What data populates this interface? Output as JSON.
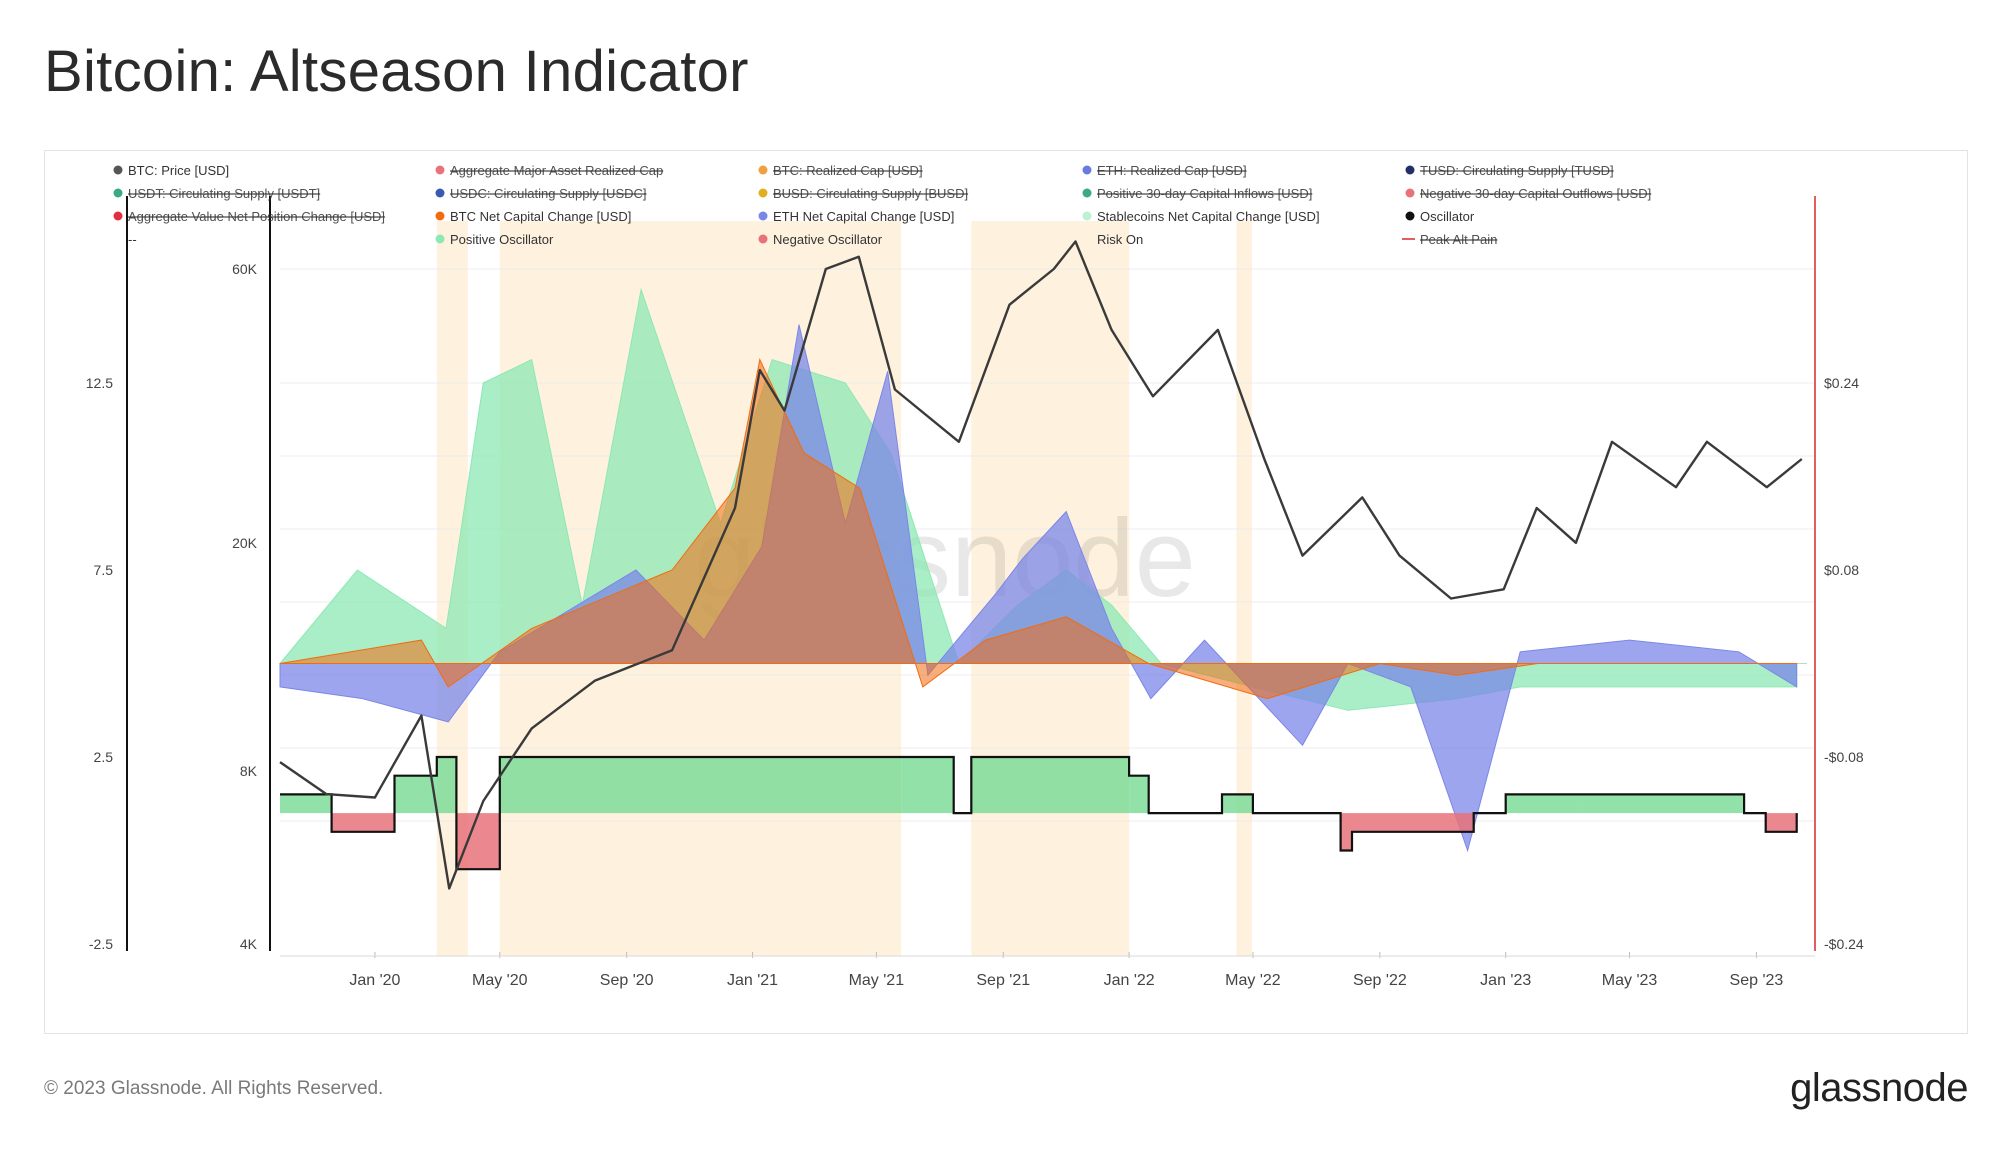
{
  "header": {
    "title": "Bitcoin: Altseason Indicator"
  },
  "footer": {
    "copyright": "© 2023 Glassnode. All Rights Reserved.",
    "brand": "glassnode"
  },
  "watermark": "glassnode",
  "colors": {
    "btc_price": "#3a3a3a",
    "btc_net_capital": "#f26b10",
    "eth_net_capital": "#7b87e8",
    "stablecoin_net_capital": "#8ce8b4",
    "positive_oscillator": "#7fdc9a",
    "negative_oscillator": "#e8727a",
    "risk_on": "#fdebd0",
    "right_axis": "#e06060"
  },
  "chart_data": {
    "type": "line",
    "title": "Bitcoin: Altseason Indicator",
    "legend": {
      "placement": "top",
      "items": [
        {
          "label": "BTC: Price [USD]",
          "color": "#555555",
          "active": true
        },
        {
          "label": "Aggregate Major Asset Realized Cap",
          "color": "#e8727a",
          "active": false
        },
        {
          "label": "BTC: Realized Cap [USD]",
          "color": "#f0a040",
          "active": false
        },
        {
          "label": "ETH: Realized Cap [USD]",
          "color": "#6a7be0",
          "active": false
        },
        {
          "label": "TUSD: Circulating Supply [TUSD]",
          "color": "#22306a",
          "active": false
        },
        {
          "label": "USDT: Circulating Supply [USDT]",
          "color": "#3aaa80",
          "active": false
        },
        {
          "label": "USDC: Circulating Supply [USDC]",
          "color": "#3a5ab0",
          "active": false
        },
        {
          "label": "BUSD: Circulating Supply [BUSD]",
          "color": "#e0b020",
          "active": false
        },
        {
          "label": "Positive 30-day Capital Inflows [USD]",
          "color": "#3aaa80",
          "active": false
        },
        {
          "label": "Negative 30-day Capital Outflows [USD]",
          "color": "#e8727a",
          "active": false
        },
        {
          "label": "Aggregate Value Net Position Change [USD]",
          "color": "#e03040",
          "active": false
        },
        {
          "label": "BTC Net Capital Change [USD]",
          "color": "#f26b10",
          "active": true
        },
        {
          "label": "ETH Net Capital Change [USD]",
          "color": "#7b87e8",
          "active": true
        },
        {
          "label": "Stablecoins Net Capital Change [USD]",
          "color": "#bff0d2",
          "active": true
        },
        {
          "label": "Oscillator",
          "color": "#111111",
          "active": true
        },
        {
          "label": "--",
          "color": "",
          "active": true
        },
        {
          "label": "Positive Oscillator",
          "color": "#8ce8b4",
          "active": true
        },
        {
          "label": "Negative Oscillator",
          "color": "#e8727a",
          "active": true
        },
        {
          "label": "Risk On",
          "color": "",
          "active": true
        },
        {
          "label": "Peak Alt Pain",
          "color": "#e06060",
          "active": false
        }
      ]
    },
    "x_axis": {
      "ticks": [
        "Jan '20",
        "May '20",
        "Sep '20",
        "Jan '21",
        "May '21",
        "Sep '21",
        "Jan '22",
        "May '22",
        "Sep '22",
        "Jan '23",
        "May '23",
        "Sep '23"
      ]
    },
    "y_axis_price": {
      "scale": "log",
      "ticks": [
        "4K",
        "8K",
        "20K",
        "60K"
      ],
      "tick_values": [
        4000,
        8000,
        20000,
        60000
      ]
    },
    "y_axis_oscillator": {
      "ticks": [
        "-2.5",
        "2.5",
        "7.5",
        "12.5"
      ],
      "tick_values": [
        -2.5,
        2.5,
        7.5,
        12.5
      ]
    },
    "y_axis_capital": {
      "ticks": [
        "-$0.24",
        "-$0.08",
        "$0.08",
        "$0.24"
      ],
      "tick_values": [
        -0.24,
        -0.08,
        0.08,
        0.24
      ]
    },
    "series": [
      {
        "name": "BTC: Price [USD]",
        "axis": "price",
        "x": [
          "2019-10-01",
          "2019-11-15",
          "2020-01-01",
          "2020-02-15",
          "2020-03-13",
          "2020-04-15",
          "2020-06-01",
          "2020-08-01",
          "2020-10-15",
          "2020-12-15",
          "2021-01-08",
          "2021-02-01",
          "2021-03-13",
          "2021-04-14",
          "2021-05-19",
          "2021-07-20",
          "2021-09-07",
          "2021-10-20",
          "2021-11-10",
          "2021-12-15",
          "2022-01-24",
          "2022-03-28",
          "2022-05-12",
          "2022-06-18",
          "2022-08-15",
          "2022-09-20",
          "2022-11-09",
          "2022-12-30",
          "2023-01-31",
          "2023-03-10",
          "2023-04-14",
          "2023-06-15",
          "2023-07-15",
          "2023-09-11",
          "2023-10-15"
        ],
        "values": [
          8300,
          7300,
          7200,
          10000,
          5000,
          7100,
          9500,
          11500,
          13000,
          23000,
          40000,
          34000,
          60000,
          63000,
          37000,
          30000,
          52000,
          60000,
          67000,
          47000,
          36000,
          47000,
          28000,
          19000,
          24000,
          19000,
          16000,
          16600,
          23000,
          20000,
          30000,
          25000,
          30000,
          25000,
          28000
        ]
      },
      {
        "name": "Oscillator",
        "axis": "oscillator",
        "x": [
          "2019-10-01",
          "2019-11-20",
          "2020-01-20",
          "2020-03-01",
          "2020-03-20",
          "2020-05-01",
          "2021-05-25",
          "2021-07-15",
          "2021-08-01",
          "2022-01-01",
          "2022-01-20",
          "2022-04-01",
          "2022-05-01",
          "2022-07-25",
          "2022-08-05",
          "2022-12-01",
          "2023-01-01",
          "2023-03-15",
          "2023-08-20",
          "2023-09-10",
          "2023-10-10"
        ],
        "values": [
          1.5,
          0.5,
          2.0,
          2.5,
          -0.5,
          2.5,
          2.5,
          1.0,
          2.5,
          2.0,
          1.0,
          1.5,
          1.0,
          0.0,
          0.5,
          1.0,
          1.5,
          1.5,
          1.0,
          0.5,
          1.0
        ]
      },
      {
        "name": "Stablecoins Net Capital Change [USD]",
        "axis": "capital",
        "x": [
          "2019-10-01",
          "2019-12-15",
          "2020-03-10",
          "2020-04-15",
          "2020-06-01",
          "2020-07-20",
          "2020-09-15",
          "2020-12-01",
          "2021-01-20",
          "2021-04-01",
          "2021-05-15",
          "2021-07-20",
          "2021-09-15",
          "2021-11-01",
          "2021-12-15",
          "2022-02-01",
          "2022-05-01",
          "2022-08-01",
          "2022-11-15",
          "2023-01-15",
          "2023-06-01",
          "2023-10-10"
        ],
        "values": [
          0.0,
          0.08,
          0.03,
          0.24,
          0.26,
          0.05,
          0.32,
          0.12,
          0.26,
          0.24,
          0.18,
          0.0,
          0.05,
          0.08,
          0.05,
          0.0,
          -0.02,
          -0.04,
          -0.03,
          -0.02,
          -0.02,
          -0.02
        ]
      },
      {
        "name": "ETH Net Capital Change [USD]",
        "axis": "capital",
        "x": [
          "2019-10-01",
          "2019-12-20",
          "2020-03-12",
          "2020-05-01",
          "2020-09-10",
          "2020-11-15",
          "2021-01-10",
          "2021-02-15",
          "2021-04-01",
          "2021-05-12",
          "2021-06-20",
          "2021-08-25",
          "2021-09-20",
          "2021-11-01",
          "2021-12-15",
          "2022-01-22",
          "2022-03-15",
          "2022-06-18",
          "2022-08-01",
          "2022-10-01",
          "2022-11-25",
          "2023-01-15",
          "2023-05-01",
          "2023-08-15",
          "2023-10-10"
        ],
        "values": [
          -0.02,
          -0.03,
          -0.05,
          0.01,
          0.08,
          0.02,
          0.1,
          0.29,
          0.12,
          0.25,
          -0.01,
          0.06,
          0.09,
          0.13,
          0.03,
          -0.03,
          0.02,
          -0.07,
          0.0,
          -0.02,
          -0.16,
          0.01,
          0.02,
          0.01,
          -0.02
        ]
      },
      {
        "name": "BTC Net Capital Change [USD]",
        "axis": "capital",
        "x": [
          "2019-10-01",
          "2020-02-15",
          "2020-03-12",
          "2020-06-01",
          "2020-10-15",
          "2020-12-15",
          "2021-01-08",
          "2021-02-20",
          "2021-04-15",
          "2021-06-15",
          "2021-08-15",
          "2021-11-01",
          "2022-01-20",
          "2022-05-15",
          "2022-09-01",
          "2022-11-15",
          "2023-02-01",
          "2023-06-01",
          "2023-10-10"
        ],
        "values": [
          0.0,
          0.02,
          -0.02,
          0.03,
          0.08,
          0.15,
          0.26,
          0.18,
          0.15,
          -0.02,
          0.02,
          0.04,
          0.0,
          -0.03,
          0.0,
          -0.01,
          0.0,
          0.0,
          0.0
        ]
      },
      {
        "name": "Risk On",
        "type": "periods",
        "ranges": [
          [
            "2020-03-01",
            "2020-03-31"
          ],
          [
            "2020-05-01",
            "2021-05-25"
          ],
          [
            "2021-08-01",
            "2022-01-01"
          ],
          [
            "2022-04-15",
            "2022-04-30"
          ]
        ]
      }
    ]
  }
}
